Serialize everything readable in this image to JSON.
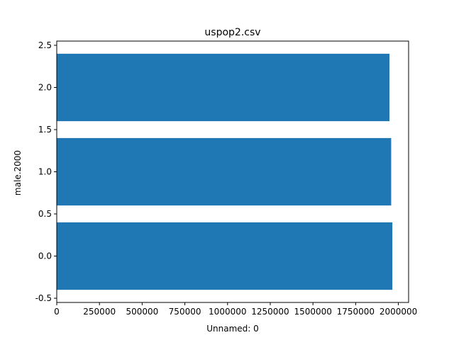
{
  "chart_data": {
    "type": "bar",
    "orientation": "horizontal",
    "title": "uspop2.csv",
    "xlabel": "Unnamed: 0",
    "ylabel": "male.2000",
    "xlim": [
      0,
      2060000
    ],
    "ylim": [
      -0.55,
      2.55
    ],
    "xticks": [
      0,
      250000,
      500000,
      750000,
      1000000,
      1250000,
      1500000,
      1750000,
      2000000
    ],
    "xtick_labels": [
      "0",
      "250000",
      "500000",
      "750000",
      "1000000",
      "1250000",
      "1500000",
      "1750000",
      "2000000"
    ],
    "yticks": [
      -0.5,
      0.0,
      0.5,
      1.0,
      1.5,
      2.0,
      2.5
    ],
    "ytick_labels": [
      "-0.5",
      "0.0",
      "0.5",
      "1.0",
      "1.5",
      "2.0",
      "2.5"
    ],
    "bar_height": 0.8,
    "bars": [
      {
        "y": 0,
        "value": 1965000
      },
      {
        "y": 1,
        "value": 1958000
      },
      {
        "y": 2,
        "value": 1948000
      }
    ],
    "bar_color": "#1f77b4",
    "grid": false,
    "legend": "none"
  }
}
